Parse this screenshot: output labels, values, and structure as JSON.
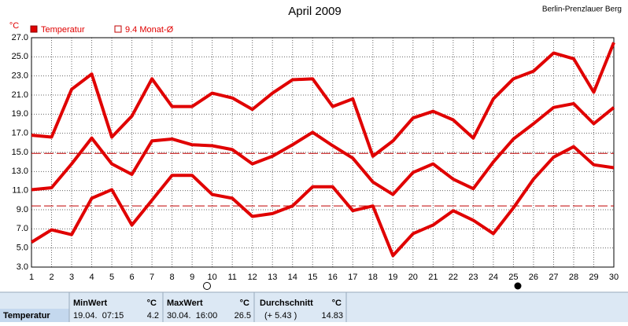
{
  "chart_data": {
    "type": "line",
    "title": "April 2009",
    "location": "Berlin-Prenzlauer Berg",
    "y_unit": "°C",
    "x": [
      1,
      2,
      3,
      4,
      5,
      6,
      7,
      8,
      9,
      10,
      11,
      12,
      13,
      14,
      15,
      16,
      17,
      18,
      19,
      20,
      21,
      22,
      23,
      24,
      25,
      26,
      27,
      28,
      29,
      30
    ],
    "series": [
      {
        "name": "Temperatur",
        "color": "#e00000",
        "values": [
          16.8,
          16.6,
          21.6,
          23.2,
          16.6,
          18.8,
          22.7,
          19.8,
          19.8,
          21.2,
          20.7,
          19.5,
          21.2,
          22.6,
          22.7,
          19.8,
          20.6,
          14.6,
          16.2,
          18.6,
          19.3,
          18.4,
          16.5,
          20.6,
          22.7,
          23.5,
          25.4,
          24.8,
          21.3,
          26.5
        ]
      },
      {
        "color": "#e00000",
        "values": [
          11.1,
          11.3,
          13.8,
          16.5,
          13.8,
          12.7,
          16.2,
          16.4,
          15.8,
          15.7,
          15.3,
          13.8,
          14.6,
          15.8,
          17.1,
          15.7,
          14.4,
          11.9,
          10.6,
          12.9,
          13.8,
          12.2,
          11.2,
          14.0,
          16.4,
          18.0,
          19.7,
          20.1,
          18.0,
          19.7
        ]
      },
      {
        "color": "#e00000",
        "values": [
          5.6,
          6.9,
          6.4,
          10.2,
          11.1,
          7.4,
          10.0,
          12.6,
          12.6,
          10.6,
          10.2,
          8.3,
          8.6,
          9.4,
          11.4,
          11.4,
          8.9,
          9.4,
          4.2,
          6.5,
          7.4,
          8.9,
          7.9,
          6.5,
          9.2,
          12.2,
          14.5,
          15.6,
          13.7,
          13.4
        ]
      }
    ],
    "reference_lines": [
      {
        "value": 9.4,
        "label": "9.4 Monat-Ø",
        "color": "#c00000"
      },
      {
        "value": 14.9,
        "color": "#c00000"
      }
    ],
    "xlim": [
      1,
      30
    ],
    "xticks": [
      1,
      2,
      3,
      4,
      5,
      6,
      7,
      8,
      9,
      10,
      11,
      12,
      13,
      14,
      15,
      16,
      17,
      18,
      19,
      20,
      21,
      22,
      23,
      24,
      25,
      26,
      27,
      28,
      29,
      30
    ],
    "ylim": [
      3,
      27
    ],
    "yticks": [
      {
        "value": 3,
        "label": "3.0"
      },
      {
        "value": 5,
        "label": "5.0"
      },
      {
        "value": 7,
        "label": "7.0"
      },
      {
        "value": 9,
        "label": "9.0"
      },
      {
        "value": 11,
        "label": "11.0"
      },
      {
        "value": 13,
        "label": "13.0"
      },
      {
        "value": 15,
        "label": "15.0"
      },
      {
        "value": 17,
        "label": "17.0"
      },
      {
        "value": 19,
        "label": "19.0"
      },
      {
        "value": 21,
        "label": "21.0"
      },
      {
        "value": 23,
        "label": "23.0"
      },
      {
        "value": 25,
        "label": "25.0"
      },
      {
        "value": 27,
        "label": "27.0"
      }
    ],
    "grid": true
  },
  "table": {
    "header": [
      "MinWert",
      "°C",
      "MaxWert",
      "°C",
      "Durchschnitt",
      "°C"
    ],
    "row": [
      "Temperatur",
      "19.04.  07:15",
      "4.2",
      "30.04.  16:00",
      "26.5",
      "(+ 5.43 )",
      "14.83"
    ]
  }
}
